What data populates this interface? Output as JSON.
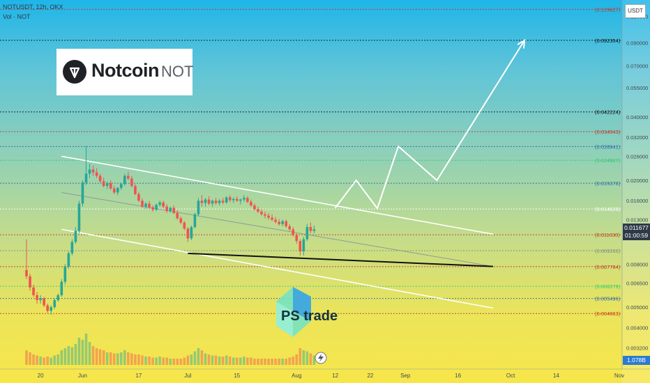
{
  "header": {
    "symbol_line": "NOTUSDT, 12h, OKX",
    "volume_line": "Vol · NOT"
  },
  "logo": {
    "name": "Notcoin",
    "ticker": "NOT"
  },
  "watermark": {
    "text": "PS trade"
  },
  "price_axis": {
    "currency": "USDT"
  },
  "current_price": {
    "value": "0.011677",
    "countdown": "01:00:59"
  },
  "volume_badge": {
    "value": "1.078B"
  },
  "colors": {
    "candle_up": "#26a69a",
    "candle_down": "#ef5350",
    "trend_line": "#ffffff",
    "base_line": "#111111",
    "level_black": "#111111",
    "level_red": "#c0392b",
    "level_blue": "#2e6aa8",
    "level_green": "#2ecc71"
  },
  "chart_data": {
    "type": "candlestick",
    "symbol": "NOTUSDT",
    "timeframe": "12h",
    "exchange": "OKX",
    "y_scale": "log",
    "ylim": [
      0.0026,
      0.135
    ],
    "xlim": [
      "2024-05-16",
      "2024-11-01"
    ],
    "x_ticks": [
      {
        "date": "2024-05-20",
        "label": "20"
      },
      {
        "date": "2024-06-01",
        "label": "Jun"
      },
      {
        "date": "2024-06-17",
        "label": "17"
      },
      {
        "date": "2024-07-01",
        "label": "Jul"
      },
      {
        "date": "2024-07-15",
        "label": "15"
      },
      {
        "date": "2024-08-01",
        "label": "Aug"
      },
      {
        "date": "2024-08-12",
        "label": "12"
      },
      {
        "date": "2024-08-22",
        "label": "22"
      },
      {
        "date": "2024-09-01",
        "label": "Sep"
      },
      {
        "date": "2024-09-16",
        "label": "16"
      },
      {
        "date": "2024-10-01",
        "label": "Oct"
      },
      {
        "date": "2024-10-14",
        "label": "14"
      },
      {
        "date": "2024-11-01",
        "label": "Nov"
      }
    ],
    "y_ticks": [
      "0.120000",
      "0.090000",
      "0.070000",
      "0.055000",
      "0.040000",
      "0.032000",
      "0.026000",
      "0.020000",
      "0.016000",
      "0.013000",
      "0.008000",
      "0.006500",
      "0.005000",
      "0.004000",
      "0.003200"
    ],
    "levels": [
      {
        "value": 0.129627,
        "label": "(0.129627)",
        "color": "red",
        "style": "dotted"
      },
      {
        "value": 0.092354,
        "label": "(0.092354)",
        "color": "black",
        "style": "dotted"
      },
      {
        "value": 0.042224,
        "label": "(0.042224)",
        "color": "black",
        "style": "dotted"
      },
      {
        "value": 0.034043,
        "label": "(0.034043)",
        "color": "red",
        "style": "dotted"
      },
      {
        "value": 0.028941,
        "label": "(0.028941)",
        "color": "blue",
        "style": "dotted"
      },
      {
        "value": 0.024887,
        "label": "(0.024887)",
        "color": "green",
        "style": "dotted"
      },
      {
        "value": 0.019378,
        "label": "(0.019378)",
        "color": "blue",
        "style": "dotted"
      },
      {
        "value": 0.01462,
        "label": "(0.014620)",
        "color": "white",
        "style": "dotted"
      },
      {
        "value": 0.01103,
        "label": "(0.011030)",
        "color": "red",
        "style": "dotted"
      },
      {
        "value": 0.009266,
        "label": "(0.009266)",
        "color": "grey",
        "style": "dotted"
      },
      {
        "value": 0.007784,
        "label": "(0.007784)",
        "color": "red",
        "style": "dotted"
      },
      {
        "value": 0.006279,
        "label": "(0.006279)",
        "color": "green",
        "style": "dotted"
      },
      {
        "value": 0.005496,
        "label": "(0.005496)",
        "color": "blue",
        "style": "dotted"
      },
      {
        "value": 0.004663,
        "label": "(0.004663)",
        "color": "red",
        "style": "dotted"
      }
    ],
    "candles": [
      {
        "d": "2024-05-16",
        "o": 0.0075,
        "h": 0.0105,
        "l": 0.0068,
        "c": 0.007,
        "v": 14
      },
      {
        "d": "2024-05-17",
        "o": 0.007,
        "h": 0.0072,
        "l": 0.006,
        "c": 0.0062,
        "v": 12
      },
      {
        "d": "2024-05-18",
        "o": 0.0062,
        "h": 0.0064,
        "l": 0.0056,
        "c": 0.0057,
        "v": 10
      },
      {
        "d": "2024-05-19",
        "o": 0.0057,
        "h": 0.0059,
        "l": 0.0052,
        "c": 0.0054,
        "v": 9
      },
      {
        "d": "2024-05-20",
        "o": 0.0054,
        "h": 0.0057,
        "l": 0.0052,
        "c": 0.0055,
        "v": 8
      },
      {
        "d": "2024-05-21",
        "o": 0.0055,
        "h": 0.0056,
        "l": 0.005,
        "c": 0.0051,
        "v": 7
      },
      {
        "d": "2024-05-22",
        "o": 0.0051,
        "h": 0.0052,
        "l": 0.0047,
        "c": 0.0048,
        "v": 8
      },
      {
        "d": "2024-05-23",
        "o": 0.0048,
        "h": 0.0051,
        "l": 0.0046,
        "c": 0.005,
        "v": 7
      },
      {
        "d": "2024-05-24",
        "o": 0.005,
        "h": 0.0055,
        "l": 0.0049,
        "c": 0.0054,
        "v": 9
      },
      {
        "d": "2024-05-25",
        "o": 0.0054,
        "h": 0.0058,
        "l": 0.0053,
        "c": 0.0057,
        "v": 10
      },
      {
        "d": "2024-05-26",
        "o": 0.0057,
        "h": 0.0068,
        "l": 0.0056,
        "c": 0.0066,
        "v": 14
      },
      {
        "d": "2024-05-27",
        "o": 0.0066,
        "h": 0.008,
        "l": 0.0064,
        "c": 0.0078,
        "v": 16
      },
      {
        "d": "2024-05-28",
        "o": 0.0078,
        "h": 0.0092,
        "l": 0.0076,
        "c": 0.009,
        "v": 18
      },
      {
        "d": "2024-05-29",
        "o": 0.009,
        "h": 0.0105,
        "l": 0.0088,
        "c": 0.0102,
        "v": 17
      },
      {
        "d": "2024-05-30",
        "o": 0.0102,
        "h": 0.012,
        "l": 0.01,
        "c": 0.0115,
        "v": 20
      },
      {
        "d": "2024-05-31",
        "o": 0.0115,
        "h": 0.016,
        "l": 0.0112,
        "c": 0.0155,
        "v": 26
      },
      {
        "d": "2024-06-01",
        "o": 0.0155,
        "h": 0.02,
        "l": 0.015,
        "c": 0.0195,
        "v": 24
      },
      {
        "d": "2024-06-02",
        "o": 0.0195,
        "h": 0.029,
        "l": 0.019,
        "c": 0.0215,
        "v": 30
      },
      {
        "d": "2024-06-03",
        "o": 0.0215,
        "h": 0.024,
        "l": 0.0205,
        "c": 0.0225,
        "v": 22
      },
      {
        "d": "2024-06-04",
        "o": 0.0225,
        "h": 0.0235,
        "l": 0.021,
        "c": 0.0218,
        "v": 18
      },
      {
        "d": "2024-06-05",
        "o": 0.0218,
        "h": 0.0228,
        "l": 0.0205,
        "c": 0.021,
        "v": 16
      },
      {
        "d": "2024-06-06",
        "o": 0.021,
        "h": 0.0215,
        "l": 0.0195,
        "c": 0.0198,
        "v": 15
      },
      {
        "d": "2024-06-07",
        "o": 0.0198,
        "h": 0.0206,
        "l": 0.0185,
        "c": 0.0188,
        "v": 14
      },
      {
        "d": "2024-06-08",
        "o": 0.0188,
        "h": 0.0198,
        "l": 0.0182,
        "c": 0.0194,
        "v": 12
      },
      {
        "d": "2024-06-09",
        "o": 0.0194,
        "h": 0.02,
        "l": 0.018,
        "c": 0.0183,
        "v": 12
      },
      {
        "d": "2024-06-10",
        "o": 0.0183,
        "h": 0.0188,
        "l": 0.0172,
        "c": 0.0175,
        "v": 11
      },
      {
        "d": "2024-06-11",
        "o": 0.0175,
        "h": 0.0186,
        "l": 0.017,
        "c": 0.0184,
        "v": 11
      },
      {
        "d": "2024-06-12",
        "o": 0.0184,
        "h": 0.0195,
        "l": 0.018,
        "c": 0.0192,
        "v": 12
      },
      {
        "d": "2024-06-13",
        "o": 0.0192,
        "h": 0.0215,
        "l": 0.0188,
        "c": 0.021,
        "v": 14
      },
      {
        "d": "2024-06-14",
        "o": 0.021,
        "h": 0.022,
        "l": 0.02,
        "c": 0.0204,
        "v": 12
      },
      {
        "d": "2024-06-15",
        "o": 0.0204,
        "h": 0.021,
        "l": 0.0185,
        "c": 0.0188,
        "v": 11
      },
      {
        "d": "2024-06-16",
        "o": 0.0188,
        "h": 0.0192,
        "l": 0.017,
        "c": 0.0172,
        "v": 10
      },
      {
        "d": "2024-06-17",
        "o": 0.0172,
        "h": 0.0176,
        "l": 0.0158,
        "c": 0.016,
        "v": 10
      },
      {
        "d": "2024-06-18",
        "o": 0.016,
        "h": 0.0164,
        "l": 0.0148,
        "c": 0.015,
        "v": 9
      },
      {
        "d": "2024-06-19",
        "o": 0.015,
        "h": 0.0158,
        "l": 0.0146,
        "c": 0.0155,
        "v": 8
      },
      {
        "d": "2024-06-20",
        "o": 0.0155,
        "h": 0.016,
        "l": 0.0146,
        "c": 0.0149,
        "v": 8
      },
      {
        "d": "2024-06-21",
        "o": 0.0149,
        "h": 0.0152,
        "l": 0.0142,
        "c": 0.0145,
        "v": 7
      },
      {
        "d": "2024-06-22",
        "o": 0.0145,
        "h": 0.0155,
        "l": 0.0143,
        "c": 0.0153,
        "v": 7
      },
      {
        "d": "2024-06-23",
        "o": 0.0153,
        "h": 0.016,
        "l": 0.015,
        "c": 0.0157,
        "v": 8
      },
      {
        "d": "2024-06-24",
        "o": 0.0157,
        "h": 0.016,
        "l": 0.0147,
        "c": 0.015,
        "v": 7
      },
      {
        "d": "2024-06-25",
        "o": 0.015,
        "h": 0.0154,
        "l": 0.014,
        "c": 0.0143,
        "v": 7
      },
      {
        "d": "2024-06-26",
        "o": 0.0143,
        "h": 0.015,
        "l": 0.014,
        "c": 0.0148,
        "v": 6
      },
      {
        "d": "2024-06-27",
        "o": 0.0148,
        "h": 0.0152,
        "l": 0.0138,
        "c": 0.014,
        "v": 6
      },
      {
        "d": "2024-06-28",
        "o": 0.014,
        "h": 0.0144,
        "l": 0.013,
        "c": 0.0132,
        "v": 6
      },
      {
        "d": "2024-06-29",
        "o": 0.0132,
        "h": 0.0135,
        "l": 0.0124,
        "c": 0.0126,
        "v": 6
      },
      {
        "d": "2024-06-30",
        "o": 0.0126,
        "h": 0.0128,
        "l": 0.0116,
        "c": 0.0118,
        "v": 7
      },
      {
        "d": "2024-07-01",
        "o": 0.0118,
        "h": 0.012,
        "l": 0.0102,
        "c": 0.0106,
        "v": 9
      },
      {
        "d": "2024-07-02",
        "o": 0.0106,
        "h": 0.0122,
        "l": 0.0104,
        "c": 0.012,
        "v": 10
      },
      {
        "d": "2024-07-03",
        "o": 0.012,
        "h": 0.014,
        "l": 0.0118,
        "c": 0.0138,
        "v": 13
      },
      {
        "d": "2024-07-04",
        "o": 0.0138,
        "h": 0.0165,
        "l": 0.0135,
        "c": 0.016,
        "v": 16
      },
      {
        "d": "2024-07-05",
        "o": 0.016,
        "h": 0.017,
        "l": 0.015,
        "c": 0.0156,
        "v": 14
      },
      {
        "d": "2024-07-06",
        "o": 0.0156,
        "h": 0.0165,
        "l": 0.015,
        "c": 0.0162,
        "v": 11
      },
      {
        "d": "2024-07-07",
        "o": 0.0162,
        "h": 0.0168,
        "l": 0.0152,
        "c": 0.0155,
        "v": 10
      },
      {
        "d": "2024-07-08",
        "o": 0.0155,
        "h": 0.0162,
        "l": 0.015,
        "c": 0.016,
        "v": 9
      },
      {
        "d": "2024-07-09",
        "o": 0.016,
        "h": 0.0165,
        "l": 0.0153,
        "c": 0.0156,
        "v": 9
      },
      {
        "d": "2024-07-10",
        "o": 0.0156,
        "h": 0.0163,
        "l": 0.0152,
        "c": 0.016,
        "v": 8
      },
      {
        "d": "2024-07-11",
        "o": 0.016,
        "h": 0.0165,
        "l": 0.0154,
        "c": 0.0157,
        "v": 8
      },
      {
        "d": "2024-07-12",
        "o": 0.0157,
        "h": 0.0168,
        "l": 0.0155,
        "c": 0.0166,
        "v": 9
      },
      {
        "d": "2024-07-13",
        "o": 0.0166,
        "h": 0.017,
        "l": 0.0158,
        "c": 0.0161,
        "v": 8
      },
      {
        "d": "2024-07-14",
        "o": 0.0161,
        "h": 0.0166,
        "l": 0.0156,
        "c": 0.0163,
        "v": 7
      },
      {
        "d": "2024-07-15",
        "o": 0.0163,
        "h": 0.0168,
        "l": 0.0158,
        "c": 0.016,
        "v": 7
      },
      {
        "d": "2024-07-16",
        "o": 0.016,
        "h": 0.0164,
        "l": 0.0154,
        "c": 0.0162,
        "v": 7
      },
      {
        "d": "2024-07-17",
        "o": 0.0162,
        "h": 0.017,
        "l": 0.0158,
        "c": 0.0165,
        "v": 8
      },
      {
        "d": "2024-07-18",
        "o": 0.0165,
        "h": 0.0168,
        "l": 0.0156,
        "c": 0.0158,
        "v": 7
      },
      {
        "d": "2024-07-19",
        "o": 0.0158,
        "h": 0.0162,
        "l": 0.015,
        "c": 0.0152,
        "v": 7
      },
      {
        "d": "2024-07-20",
        "o": 0.0152,
        "h": 0.0155,
        "l": 0.0144,
        "c": 0.0146,
        "v": 6
      },
      {
        "d": "2024-07-21",
        "o": 0.0146,
        "h": 0.015,
        "l": 0.014,
        "c": 0.0142,
        "v": 6
      },
      {
        "d": "2024-07-22",
        "o": 0.0142,
        "h": 0.0146,
        "l": 0.0136,
        "c": 0.0138,
        "v": 6
      },
      {
        "d": "2024-07-23",
        "o": 0.0138,
        "h": 0.0142,
        "l": 0.0132,
        "c": 0.0136,
        "v": 6
      },
      {
        "d": "2024-07-24",
        "o": 0.0136,
        "h": 0.014,
        "l": 0.013,
        "c": 0.0133,
        "v": 6
      },
      {
        "d": "2024-07-25",
        "o": 0.0133,
        "h": 0.0138,
        "l": 0.0128,
        "c": 0.013,
        "v": 6
      },
      {
        "d": "2024-07-26",
        "o": 0.013,
        "h": 0.0134,
        "l": 0.0125,
        "c": 0.0127,
        "v": 6
      },
      {
        "d": "2024-07-27",
        "o": 0.0127,
        "h": 0.0131,
        "l": 0.0122,
        "c": 0.0124,
        "v": 6
      },
      {
        "d": "2024-07-28",
        "o": 0.0124,
        "h": 0.013,
        "l": 0.0121,
        "c": 0.0128,
        "v": 6
      },
      {
        "d": "2024-07-29",
        "o": 0.0128,
        "h": 0.013,
        "l": 0.0119,
        "c": 0.0121,
        "v": 6
      },
      {
        "d": "2024-07-30",
        "o": 0.0121,
        "h": 0.0124,
        "l": 0.0115,
        "c": 0.0117,
        "v": 7
      },
      {
        "d": "2024-07-31",
        "o": 0.0117,
        "h": 0.012,
        "l": 0.0108,
        "c": 0.011,
        "v": 8
      },
      {
        "d": "2024-08-01",
        "o": 0.011,
        "h": 0.0112,
        "l": 0.01,
        "c": 0.0103,
        "v": 10
      },
      {
        "d": "2024-08-02",
        "o": 0.0103,
        "h": 0.0105,
        "l": 0.0088,
        "c": 0.0092,
        "v": 16
      },
      {
        "d": "2024-08-03",
        "o": 0.0092,
        "h": 0.0108,
        "l": 0.0088,
        "c": 0.0105,
        "v": 14
      },
      {
        "d": "2024-08-04",
        "o": 0.0105,
        "h": 0.0124,
        "l": 0.0103,
        "c": 0.012,
        "v": 13
      },
      {
        "d": "2024-08-05",
        "o": 0.012,
        "h": 0.0126,
        "l": 0.0112,
        "c": 0.0115,
        "v": 11
      },
      {
        "d": "2024-08-06",
        "o": 0.0115,
        "h": 0.0122,
        "l": 0.0112,
        "c": 0.0117,
        "v": 9
      }
    ],
    "drawings": {
      "channel_upper": [
        {
          "d": "2024-05-26",
          "p": 0.026
        },
        {
          "d": "2024-09-26",
          "p": 0.0111
        }
      ],
      "channel_lower": [
        {
          "d": "2024-05-26",
          "p": 0.0117
        },
        {
          "d": "2024-09-26",
          "p": 0.00495
        }
      ],
      "channel_mid": [
        {
          "d": "2024-05-26",
          "p": 0.0175
        },
        {
          "d": "2024-09-26",
          "p": 0.0078
        }
      ],
      "base_line": [
        {
          "d": "2024-07-01",
          "p": 0.009
        },
        {
          "d": "2024-09-26",
          "p": 0.0078
        }
      ],
      "projection": [
        {
          "d": "2024-08-12",
          "p": 0.0148
        },
        {
          "d": "2024-08-18",
          "p": 0.02
        },
        {
          "d": "2024-08-24",
          "p": 0.0147
        },
        {
          "d": "2024-08-30",
          "p": 0.029
        },
        {
          "d": "2024-09-10",
          "p": 0.02
        },
        {
          "d": "2024-10-05",
          "p": 0.0925
        }
      ]
    }
  }
}
